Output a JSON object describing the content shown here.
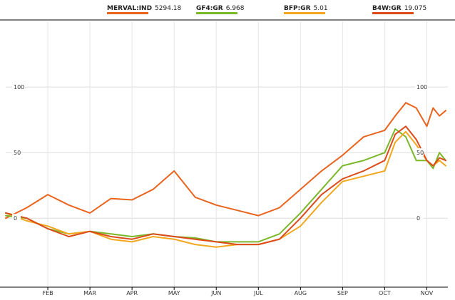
{
  "chart_data": {
    "type": "line",
    "xlabel": "",
    "ylabel": "",
    "x_tick_labels": [
      "FEB",
      "MAR",
      "APR",
      "MAY",
      "JUN",
      "JUL",
      "AUG",
      "SEP",
      "OCT",
      "NOV"
    ],
    "y_tick_labels": [
      "100",
      "50",
      "0"
    ],
    "y_ticks": [
      100,
      50,
      0
    ],
    "ylim": [
      -52,
      150
    ],
    "xlim": [
      0,
      10.5
    ],
    "grid": true,
    "legend_position": "top",
    "x": [
      0.0,
      0.5,
      1.0,
      1.5,
      2.0,
      2.5,
      3.0,
      3.5,
      4.0,
      4.5,
      5.0,
      5.5,
      6.0,
      6.5,
      7.0,
      7.5,
      8.0,
      8.5,
      9.0,
      9.25,
      9.5,
      9.75,
      10.0,
      10.15,
      10.3,
      10.45
    ],
    "series": [
      {
        "name": "MERVAL:IND",
        "last": "5294.18",
        "color": "#e8641f",
        "values": [
          0,
          8,
          18,
          10,
          4,
          15,
          14,
          22,
          36,
          16,
          10,
          6,
          2,
          8,
          22,
          36,
          48,
          62,
          67,
          78,
          88,
          84,
          70,
          84,
          78,
          82
        ]
      },
      {
        "name": "GF4:GR",
        "last": "6.968",
        "color": "#7ab82a",
        "values": [
          2,
          0,
          -8,
          -12,
          -10,
          -12,
          -14,
          -12,
          -14,
          -15,
          -18,
          -18,
          -18,
          -12,
          4,
          22,
          40,
          44,
          50,
          68,
          62,
          44,
          44,
          38,
          50,
          44
        ]
      },
      {
        "name": "BFP:GR",
        "last": "5.01",
        "color": "#f2a71e",
        "values": [
          4,
          -2,
          -6,
          -12,
          -10,
          -16,
          -18,
          -14,
          -16,
          -20,
          -22,
          -20,
          -20,
          -16,
          -6,
          12,
          28,
          32,
          36,
          58,
          66,
          56,
          44,
          40,
          44,
          40
        ]
      },
      {
        "name": "B4W:GR",
        "last": "19.075",
        "color": "#dc4a1a",
        "values": [
          4,
          0,
          -8,
          -14,
          -10,
          -14,
          -16,
          -12,
          -14,
          -16,
          -18,
          -20,
          -20,
          -16,
          0,
          18,
          30,
          36,
          44,
          64,
          70,
          60,
          44,
          40,
          46,
          44
        ]
      }
    ]
  }
}
